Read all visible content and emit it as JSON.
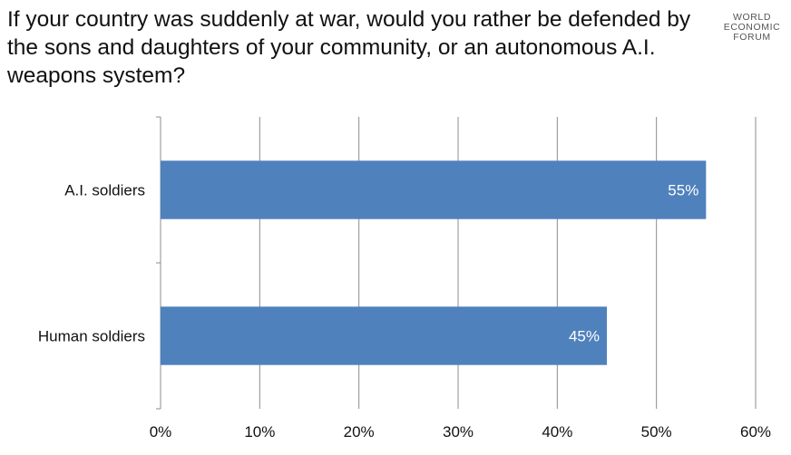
{
  "title": "If your country was suddenly at war, would you rather be defended by the sons and daughters of your community, or an autonomous A.I. weapons system?",
  "logo": {
    "line1": "WORLD",
    "line2": "ECONOMIC",
    "line3": "FORUM"
  },
  "colors": {
    "bar": "#4f81bd",
    "grid": "#8c8c8c",
    "axis_text": "#111111",
    "bar_label": "#ffffff"
  },
  "chart_data": {
    "type": "bar",
    "orientation": "horizontal",
    "categories": [
      "A.I. soldiers",
      "Human soldiers"
    ],
    "values": [
      55,
      45
    ],
    "data_labels": [
      "55%",
      "45%"
    ],
    "xlim": [
      0,
      60
    ],
    "xticks": [
      0,
      10,
      20,
      30,
      40,
      50,
      60
    ],
    "xtick_labels": [
      "0%",
      "10%",
      "20%",
      "30%",
      "40%",
      "50%",
      "60%"
    ],
    "grid": true,
    "xlabel": "",
    "ylabel": ""
  }
}
